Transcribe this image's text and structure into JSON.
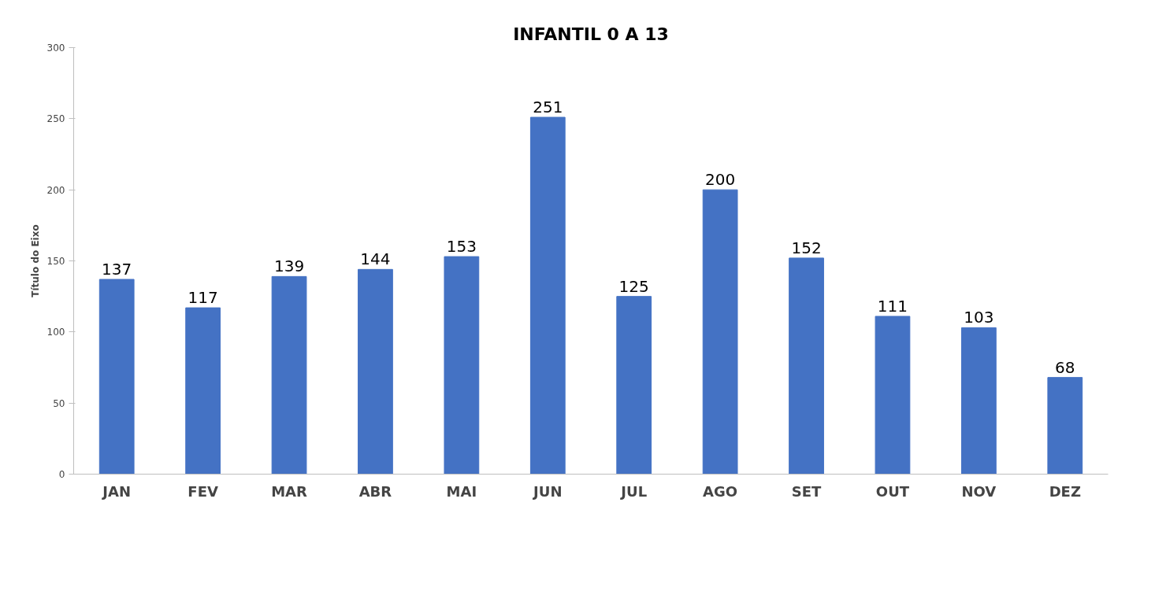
{
  "chart_data": {
    "type": "bar",
    "title": "INFANTIL 0 A 13",
    "ylabel": "Título do Eixo",
    "categories": [
      "JAN",
      "FEV",
      "MAR",
      "ABR",
      "MAI",
      "JUN",
      "JUL",
      "AGO",
      "SET",
      "OUT",
      "NOV",
      "DEZ"
    ],
    "values": [
      137,
      117,
      139,
      144,
      153,
      251,
      125,
      200,
      152,
      111,
      103,
      68
    ],
    "color": "#4472c4",
    "ylim": [
      0,
      300
    ],
    "yticks": [
      0,
      50,
      100,
      150,
      200,
      250,
      300
    ],
    "grid": false,
    "data_labels": true
  }
}
